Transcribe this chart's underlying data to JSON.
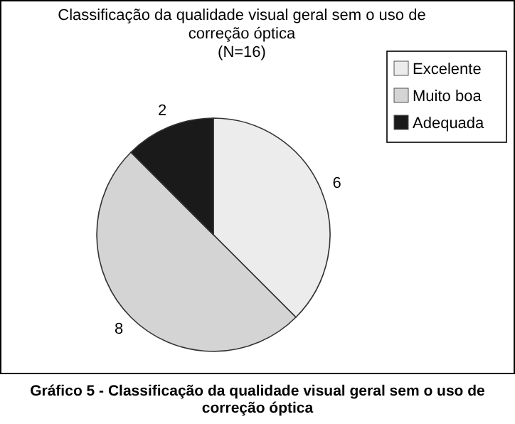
{
  "chart_data": {
    "type": "pie",
    "title": "Classificação da qualidade visual geral sem o uso de correção óptica",
    "subtitle": "(N=16)",
    "categories": [
      "Excelente",
      "Muito boa",
      "Adequada"
    ],
    "values": [
      6,
      8,
      2
    ],
    "colors": [
      "#ececec",
      "#d4d4d4",
      "#1a1a1a"
    ],
    "data_labels": true,
    "legend": "top right",
    "annotations": [
      "Gráfico 5 - Classificação da qualidade visual geral sem o uso de correção óptica"
    ]
  }
}
